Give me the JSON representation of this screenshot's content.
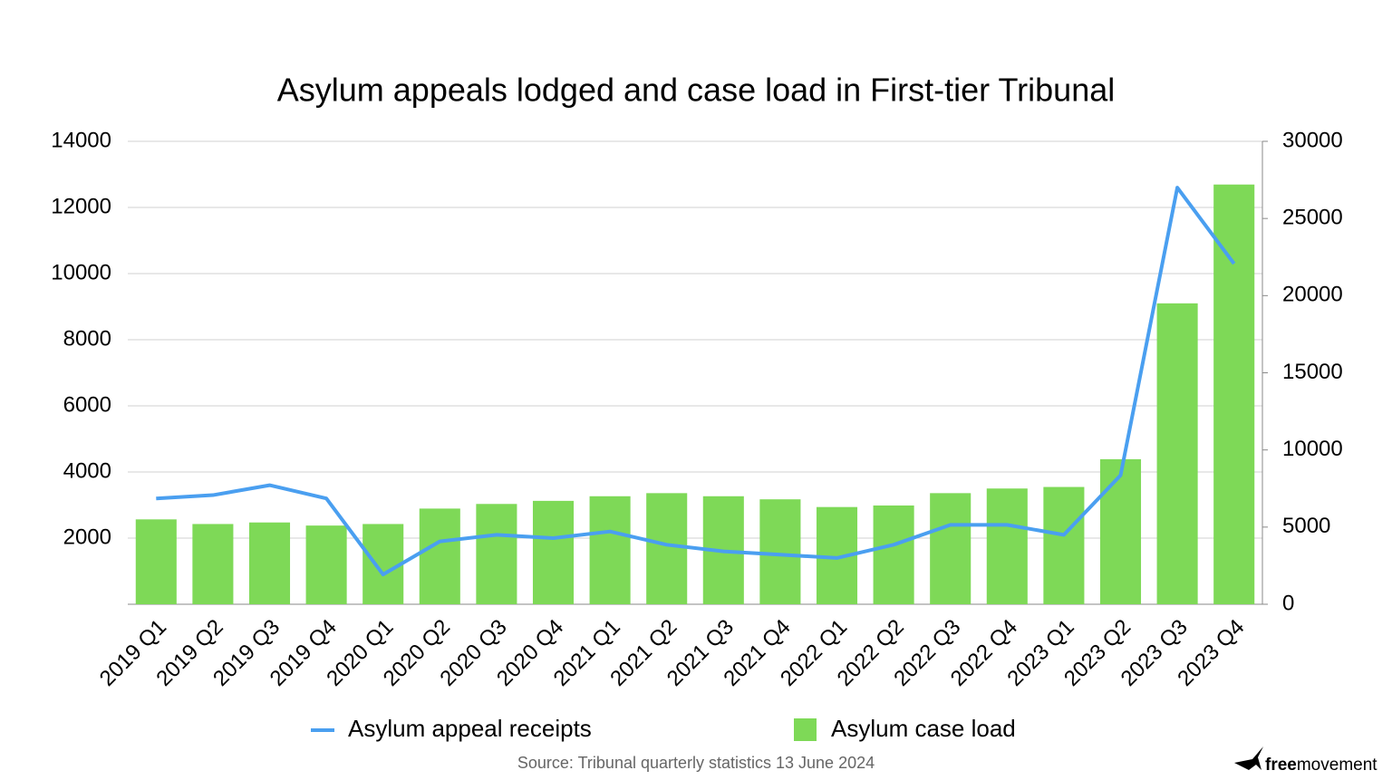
{
  "chart_data": {
    "type": "bar-line",
    "title": "Asylum appeals lodged and case load in First-tier Tribunal",
    "categories": [
      "2019 Q1",
      "2019 Q2",
      "2019 Q3",
      "2019 Q4",
      "2020 Q1",
      "2020 Q2",
      "2020 Q3",
      "2020 Q4",
      "2021 Q1",
      "2021 Q2",
      "2021 Q3",
      "2021 Q4",
      "2022 Q1",
      "2022 Q2",
      "2022 Q3",
      "2022 Q4",
      "2023 Q1",
      "2023 Q2",
      "2023 Q3",
      "2023 Q4"
    ],
    "series": [
      {
        "name": "Asylum appeal receipts",
        "type": "line",
        "color": "#4a9ff0",
        "values": [
          3200,
          3300,
          3600,
          3200,
          900,
          1900,
          2100,
          2000,
          2200,
          1800,
          1600,
          1500,
          1400,
          1800,
          2400,
          2400,
          2100,
          3900,
          12600,
          10300
        ]
      },
      {
        "name": "Asylum case load",
        "type": "bar",
        "axis": "y2",
        "color": "#7ed957",
        "values": [
          5500,
          5200,
          5300,
          5100,
          5200,
          6200,
          6500,
          6700,
          7000,
          7200,
          7000,
          6800,
          6300,
          6400,
          7200,
          7500,
          7600,
          9400,
          19500,
          27200
        ]
      }
    ],
    "ylim": [
      0,
      14000
    ],
    "yticks": [
      2000,
      4000,
      6000,
      8000,
      10000,
      12000,
      14000
    ],
    "y2lim": [
      0,
      30000
    ],
    "y2ticks": [
      0,
      5000,
      10000,
      15000,
      20000,
      25000,
      30000
    ],
    "grid": true,
    "legend": "bottom",
    "source": "Source: Tribunal quarterly statistics 13 June 2024",
    "brand": [
      "free",
      "movement"
    ]
  }
}
